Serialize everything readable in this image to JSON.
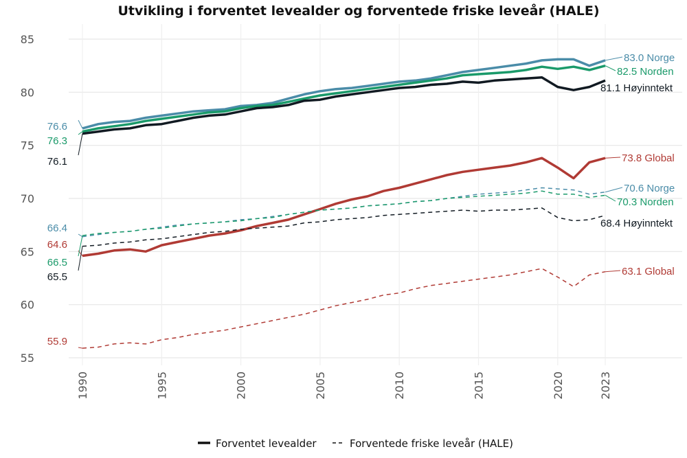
{
  "chart_data": {
    "type": "line",
    "title": "Utvikling i forventet levealder og forventede friske leveår (HALE)",
    "xlabel": "",
    "ylabel": "",
    "xlim": [
      1990,
      2023
    ],
    "ylim": [
      53,
      86
    ],
    "grid": true,
    "x_ticks": [
      "1990",
      "1995",
      "2000",
      "2005",
      "2010",
      "2015",
      "2020",
      "2023"
    ],
    "y_ticks": [
      "55",
      "60",
      "65",
      "70",
      "75",
      "80",
      "85"
    ],
    "x": [
      1990,
      1991,
      1992,
      1993,
      1994,
      1995,
      1996,
      1997,
      1998,
      1999,
      2000,
      2001,
      2002,
      2003,
      2004,
      2005,
      2006,
      2007,
      2008,
      2009,
      2010,
      2011,
      2012,
      2013,
      2014,
      2015,
      2016,
      2017,
      2018,
      2019,
      2020,
      2021,
      2022,
      2023
    ],
    "legend": {
      "placement": "bottom",
      "entries": [
        {
          "label": "Forventet levealder",
          "style": "solid"
        },
        {
          "label": "Forventede friske leveår (HALE)",
          "style": "dashed"
        }
      ]
    },
    "series": [
      {
        "name": "Norge",
        "measure": "Forventet levealder",
        "style": "solid",
        "color": "#4a8ca8",
        "start_label": "76.6",
        "end_label": "83.0 Norge",
        "values": [
          76.6,
          77.0,
          77.2,
          77.3,
          77.6,
          77.8,
          78.0,
          78.2,
          78.3,
          78.4,
          78.7,
          78.8,
          79.0,
          79.4,
          79.8,
          80.1,
          80.3,
          80.4,
          80.6,
          80.8,
          81.0,
          81.1,
          81.3,
          81.6,
          81.9,
          82.1,
          82.3,
          82.5,
          82.7,
          83.0,
          83.1,
          83.1,
          82.5,
          83.0
        ]
      },
      {
        "name": "Norden",
        "measure": "Forventet levealder",
        "style": "solid",
        "color": "#1a9a6a",
        "start_label": "76.3",
        "end_label": "82.5 Norden",
        "values": [
          76.3,
          76.6,
          76.8,
          77.0,
          77.3,
          77.5,
          77.7,
          77.9,
          78.1,
          78.2,
          78.5,
          78.7,
          78.8,
          79.1,
          79.4,
          79.7,
          79.9,
          80.1,
          80.3,
          80.5,
          80.7,
          80.9,
          81.1,
          81.3,
          81.6,
          81.7,
          81.8,
          81.9,
          82.1,
          82.4,
          82.2,
          82.4,
          82.1,
          82.5
        ]
      },
      {
        "name": "Høyinntekt",
        "measure": "Forventet levealder",
        "style": "solid",
        "color": "#111a22",
        "start_label": "76.1",
        "end_label": "81.1 Høyinntekt",
        "values": [
          76.1,
          76.3,
          76.5,
          76.6,
          76.9,
          77.0,
          77.3,
          77.6,
          77.8,
          77.9,
          78.2,
          78.5,
          78.6,
          78.8,
          79.2,
          79.3,
          79.6,
          79.8,
          80.0,
          80.2,
          80.4,
          80.5,
          80.7,
          80.8,
          81.0,
          80.9,
          81.1,
          81.2,
          81.3,
          81.4,
          80.5,
          80.2,
          80.5,
          81.1
        ]
      },
      {
        "name": "Global",
        "measure": "Forventet levealder",
        "style": "solid",
        "color": "#b03a34",
        "start_label": "64.6",
        "end_label": "73.8 Global",
        "values": [
          64.6,
          64.8,
          65.1,
          65.2,
          65.0,
          65.6,
          65.9,
          66.2,
          66.5,
          66.7,
          67.0,
          67.4,
          67.7,
          68.0,
          68.5,
          69.0,
          69.5,
          69.9,
          70.2,
          70.7,
          71.0,
          71.4,
          71.8,
          72.2,
          72.5,
          72.7,
          72.9,
          73.1,
          73.4,
          73.8,
          72.9,
          71.9,
          73.4,
          73.8
        ]
      },
      {
        "name": "Norge",
        "measure": "HALE",
        "style": "dashed",
        "color": "#4a8ca8",
        "start_label": "66.4",
        "end_label": "70.6 Norge",
        "values": [
          66.4,
          66.6,
          66.8,
          66.9,
          67.1,
          67.3,
          67.5,
          67.6,
          67.7,
          67.8,
          68.0,
          68.1,
          68.3,
          68.5,
          68.7,
          68.9,
          69.0,
          69.1,
          69.3,
          69.4,
          69.5,
          69.7,
          69.8,
          70.0,
          70.2,
          70.4,
          70.5,
          70.6,
          70.8,
          71.0,
          70.9,
          70.8,
          70.4,
          70.6
        ]
      },
      {
        "name": "Norden",
        "measure": "HALE",
        "style": "dashed",
        "color": "#1a9a6a",
        "start_label": "66.5",
        "end_label": "70.3 Norden",
        "values": [
          66.5,
          66.7,
          66.8,
          66.9,
          67.1,
          67.2,
          67.4,
          67.6,
          67.7,
          67.8,
          67.9,
          68.1,
          68.2,
          68.5,
          68.7,
          68.9,
          69.0,
          69.1,
          69.3,
          69.4,
          69.5,
          69.7,
          69.8,
          70.0,
          70.1,
          70.2,
          70.3,
          70.4,
          70.5,
          70.7,
          70.4,
          70.4,
          70.1,
          70.3
        ]
      },
      {
        "name": "Høyinntekt",
        "measure": "HALE",
        "style": "dashed",
        "color": "#111a22",
        "start_label": "65.5",
        "end_label": "68.4 Høyinntekt",
        "values": [
          65.5,
          65.6,
          65.8,
          65.9,
          66.1,
          66.2,
          66.4,
          66.6,
          66.8,
          66.9,
          67.1,
          67.2,
          67.3,
          67.4,
          67.7,
          67.8,
          68.0,
          68.1,
          68.2,
          68.4,
          68.5,
          68.6,
          68.7,
          68.8,
          68.9,
          68.8,
          68.9,
          68.9,
          69.0,
          69.1,
          68.2,
          67.9,
          68.0,
          68.4
        ]
      },
      {
        "name": "Global",
        "measure": "HALE",
        "style": "dashed",
        "color": "#b03a34",
        "start_label": "55.9",
        "end_label": "63.1 Global",
        "values": [
          55.9,
          56.0,
          56.3,
          56.4,
          56.3,
          56.7,
          56.9,
          57.2,
          57.4,
          57.6,
          57.9,
          58.2,
          58.5,
          58.8,
          59.1,
          59.5,
          59.9,
          60.2,
          60.5,
          60.9,
          61.1,
          61.5,
          61.8,
          62.0,
          62.2,
          62.4,
          62.6,
          62.8,
          63.1,
          63.4,
          62.6,
          61.7,
          62.8,
          63.1
        ]
      }
    ]
  }
}
